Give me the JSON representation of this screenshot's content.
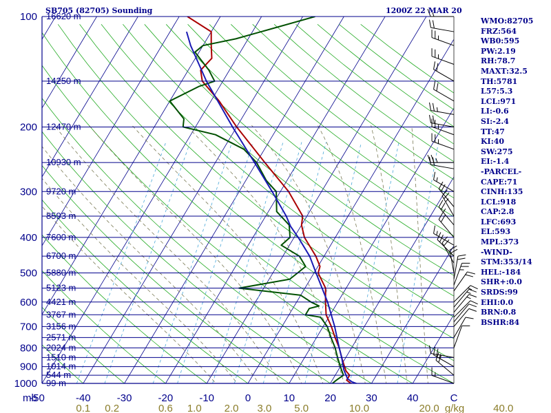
{
  "header": {
    "station": "SB705 (82705) Sounding",
    "time": "1200Z 22 MAR 20"
  },
  "stats": [
    "WMO:82705",
    "FRZ:564",
    "WB0:595",
    "PW:2.19",
    "RH:78.7",
    "MAXT:32.5",
    "TH:5781",
    "L57:5.3",
    "LCL:971",
    "LI:-0.6",
    "SI:-2.4",
    "TT:47",
    "KI:40",
    "SW:275",
    "EI:-1.4",
    "-PARCEL-",
    "CAPE:71",
    "CINH:135",
    "LCL:918",
    "CAP:2.8",
    "LFC:693",
    "EL:593",
    "MPL:373",
    "-WIND-",
    "STM:353/14",
    "HEL:-184",
    "SHR+:0.0",
    "SRDS:99",
    "EHI:0.0",
    "BRN:0.8",
    "BSHR:84"
  ],
  "colors": {
    "isobar": "#00008b",
    "isotherm": "#00008b",
    "dry_adiabat": "#22aa22",
    "moist_adiabat": "#7a7a55",
    "mixing_ratio": "#4aa8d8",
    "temperature": "#aa0000",
    "dewpoint": "#005000",
    "parcel": "#1a1ab4",
    "text": "#00008b",
    "mixing_label": "#8b7d2a"
  },
  "chart_data": {
    "type": "skew-t",
    "x_unit": "C",
    "x_axis_unit_label": "C",
    "p_axis_unit_label": "mb",
    "mixing_axis_unit_label": "g/kg",
    "xlim": [
      -50,
      50
    ],
    "plim": [
      1000,
      100
    ],
    "pressure_ticks": [
      100,
      200,
      300,
      400,
      500,
      600,
      700,
      800,
      900,
      1000
    ],
    "temperature_ticks": [
      -50,
      -40,
      -30,
      -20,
      -10,
      0,
      10,
      20,
      30,
      40,
      50
    ],
    "temperature_tick_labels": [
      "-50",
      "-40",
      "-30",
      "-20",
      "-10",
      "0",
      "10",
      "20",
      "30",
      "40",
      "C"
    ],
    "mixing_ratio_labels": [
      "0.1",
      "0.2",
      "0.6",
      "1.0",
      "2.0",
      "3.0",
      "5.0",
      "10.0",
      "20.0",
      "40.0"
    ],
    "mixing_ratio_label_temps": [
      -40,
      -33,
      -20,
      -13,
      -4,
      4,
      13,
      27,
      44,
      62
    ],
    "height_levels": [
      {
        "p": 100,
        "label": "16620 m"
      },
      {
        "p": 150,
        "label": "14250 m"
      },
      {
        "p": 200,
        "label": "12470 m"
      },
      {
        "p": 250,
        "label": "10930 m"
      },
      {
        "p": 300,
        "label": "9720 m"
      },
      {
        "p": 350,
        "label": "8593 m"
      },
      {
        "p": 400,
        "label": "7600 m"
      },
      {
        "p": 450,
        "label": "6700 m"
      },
      {
        "p": 500,
        "label": "5880 m"
      },
      {
        "p": 550,
        "label": "5123 m"
      },
      {
        "p": 600,
        "label": "4421 m"
      },
      {
        "p": 650,
        "label": "3767 m"
      },
      {
        "p": 700,
        "label": "3156 m"
      },
      {
        "p": 750,
        "label": "2571 m"
      },
      {
        "p": 800,
        "label": "2024 m"
      },
      {
        "p": 850,
        "label": "1510 m"
      },
      {
        "p": 900,
        "label": "1014 m"
      },
      {
        "p": 950,
        "label": "544 m"
      },
      {
        "p": 1000,
        "label": "99 m"
      }
    ],
    "series": [
      {
        "name": "temperature",
        "points": [
          [
            1006,
            26
          ],
          [
            1000,
            25
          ],
          [
            980,
            23.5
          ],
          [
            950,
            23.5
          ],
          [
            925,
            22
          ],
          [
            900,
            21
          ],
          [
            850,
            19
          ],
          [
            800,
            17
          ],
          [
            750,
            14.5
          ],
          [
            700,
            12
          ],
          [
            650,
            9
          ],
          [
            600,
            7
          ],
          [
            550,
            5
          ],
          [
            500,
            1
          ],
          [
            480,
            0.5
          ],
          [
            450,
            -2
          ],
          [
            400,
            -7.5
          ],
          [
            370,
            -10
          ],
          [
            350,
            -11
          ],
          [
            300,
            -18
          ],
          [
            250,
            -28
          ],
          [
            200,
            -40
          ],
          [
            170,
            -48
          ],
          [
            150,
            -55
          ],
          [
            140,
            -57
          ],
          [
            130,
            -56
          ],
          [
            120,
            -58
          ],
          [
            110,
            -60
          ],
          [
            100,
            -68
          ]
        ]
      },
      {
        "name": "dewpoint",
        "points": [
          [
            1006,
            21
          ],
          [
            1000,
            20.5
          ],
          [
            980,
            21
          ],
          [
            950,
            22
          ],
          [
            925,
            21
          ],
          [
            900,
            20
          ],
          [
            850,
            18
          ],
          [
            800,
            16
          ],
          [
            750,
            13.5
          ],
          [
            700,
            11
          ],
          [
            660,
            8
          ],
          [
            650,
            4
          ],
          [
            625,
            4
          ],
          [
            615,
            6
          ],
          [
            600,
            3.5
          ],
          [
            575,
            0
          ],
          [
            550,
            -16
          ],
          [
            520,
            -5
          ],
          [
            500,
            -4
          ],
          [
            480,
            -3
          ],
          [
            450,
            -6
          ],
          [
            420,
            -12
          ],
          [
            400,
            -11
          ],
          [
            370,
            -13
          ],
          [
            340,
            -18
          ],
          [
            300,
            -21
          ],
          [
            280,
            -25
          ],
          [
            250,
            -30
          ],
          [
            230,
            -35
          ],
          [
            210,
            -44
          ],
          [
            200,
            -53
          ],
          [
            190,
            -54
          ],
          [
            170,
            -60
          ],
          [
            155,
            -55
          ],
          [
            150,
            -52
          ],
          [
            140,
            -55
          ],
          [
            125,
            -61
          ],
          [
            120,
            -60
          ],
          [
            115,
            -53
          ],
          [
            100,
            -37
          ]
        ]
      },
      {
        "name": "parcel",
        "points": [
          [
            1006,
            27
          ],
          [
            990,
            25
          ],
          [
            971,
            23.5
          ],
          [
            918,
            21.3
          ],
          [
            850,
            19
          ],
          [
            800,
            17
          ],
          [
            700,
            12.8
          ],
          [
            600,
            7.5
          ],
          [
            500,
            0.5
          ],
          [
            450,
            -3.5
          ],
          [
            400,
            -9
          ],
          [
            373,
            -12.5
          ],
          [
            350,
            -15
          ],
          [
            300,
            -22
          ],
          [
            250,
            -30.5
          ],
          [
            200,
            -41
          ],
          [
            150,
            -54
          ],
          [
            120,
            -63
          ],
          [
            110,
            -66
          ]
        ]
      }
    ],
    "wind_barbs": [
      {
        "p": 1000,
        "dir": 290,
        "kt": 15
      },
      {
        "p": 950,
        "dir": 310,
        "kt": 20
      },
      {
        "p": 900,
        "dir": 300,
        "kt": 25
      },
      {
        "p": 850,
        "dir": 280,
        "kt": 10
      },
      {
        "p": 800,
        "dir": 20,
        "kt": 10
      },
      {
        "p": 750,
        "dir": 30,
        "kt": 10
      },
      {
        "p": 700,
        "dir": 40,
        "kt": 10
      },
      {
        "p": 680,
        "dir": 40,
        "kt": 10
      },
      {
        "p": 660,
        "dir": 45,
        "kt": 10
      },
      {
        "p": 640,
        "dir": 40,
        "kt": 15
      },
      {
        "p": 620,
        "dir": 40,
        "kt": 15
      },
      {
        "p": 600,
        "dir": 45,
        "kt": 15
      },
      {
        "p": 560,
        "dir": 35,
        "kt": 20
      },
      {
        "p": 540,
        "dir": 20,
        "kt": 25
      },
      {
        "p": 520,
        "dir": 10,
        "kt": 20
      },
      {
        "p": 500,
        "dir": 350,
        "kt": 20
      },
      {
        "p": 470,
        "dir": 330,
        "kt": 20
      },
      {
        "p": 450,
        "dir": 315,
        "kt": 20
      },
      {
        "p": 420,
        "dir": 300,
        "kt": 15
      },
      {
        "p": 400,
        "dir": 320,
        "kt": 20
      },
      {
        "p": 370,
        "dir": 320,
        "kt": 25
      },
      {
        "p": 350,
        "dir": 330,
        "kt": 25
      },
      {
        "p": 330,
        "dir": 320,
        "kt": 20
      },
      {
        "p": 300,
        "dir": 300,
        "kt": 15
      },
      {
        "p": 260,
        "dir": 280,
        "kt": 20
      },
      {
        "p": 250,
        "dir": 270,
        "kt": 25
      },
      {
        "p": 230,
        "dir": 290,
        "kt": 25
      },
      {
        "p": 210,
        "dir": 290,
        "kt": 25
      },
      {
        "p": 200,
        "dir": 280,
        "kt": 20
      },
      {
        "p": 185,
        "dir": 280,
        "kt": 25
      },
      {
        "p": 170,
        "dir": 300,
        "kt": 20
      },
      {
        "p": 150,
        "dir": 300,
        "kt": 20
      },
      {
        "p": 135,
        "dir": 290,
        "kt": 25
      },
      {
        "p": 120,
        "dir": 290,
        "kt": 25
      },
      {
        "p": 110,
        "dir": 280,
        "kt": 20
      },
      {
        "p": 100,
        "dir": 270,
        "kt": 15
      }
    ]
  }
}
